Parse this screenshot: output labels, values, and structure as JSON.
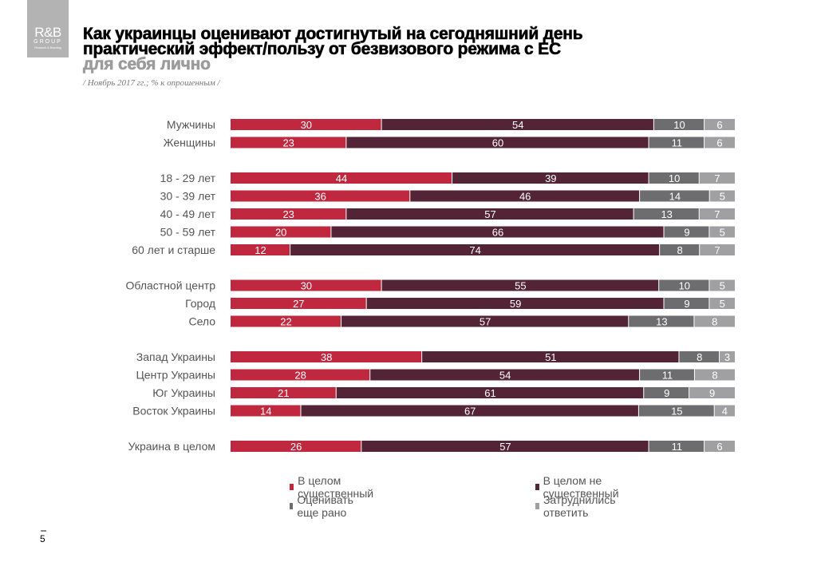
{
  "logo": {
    "line1": "R&B",
    "line2": "GROUP",
    "line3": "Research & Branding"
  },
  "title": {
    "line1": "Как украинцы оценивают достигнутый на сегодняшний день",
    "line2": "практический эффект/пользу от безвизового режима с ЕС",
    "line3": "для себя лично"
  },
  "note": "/ Ноябрь 2017 гг.; % к опрошенным /",
  "page_number": "5",
  "colors": {
    "significant": "#c0283f",
    "not_significant": "#532435",
    "too_early": "#6d6d6f",
    "hard_to_say": "#a0a0a2"
  },
  "chart_data": {
    "type": "bar",
    "orientation": "horizontal",
    "stacked": true,
    "title": "Как украинцы оценивают достигнутый на сегодняшний день практический эффект/пользу от безвизового режима с ЕС для себя лично",
    "subtitle": "/ Ноябрь 2017 гг.; % к опрошенным /",
    "xlabel": "",
    "ylabel": "",
    "xlim": [
      0,
      100
    ],
    "grid": false,
    "legend_position": "bottom",
    "groups": [
      {
        "categories": [
          "Мужчины",
          "Женщины"
        ]
      },
      {
        "categories": [
          "18 - 29 лет",
          "30 - 39 лет",
          "40 - 49 лет",
          "50 - 59 лет",
          "60 лет и старше"
        ]
      },
      {
        "categories": [
          "Областной центр",
          "Город",
          "Село"
        ]
      },
      {
        "categories": [
          "Запад Украины",
          "Центр Украины",
          "Юг Украины",
          "Восток Украины"
        ]
      },
      {
        "categories": [
          "Украина в целом"
        ]
      }
    ],
    "categories": [
      "Мужчины",
      "Женщины",
      "18 - 29 лет",
      "30 - 39 лет",
      "40 - 49 лет",
      "50 - 59 лет",
      "60 лет и старше",
      "Областной центр",
      "Город",
      "Село",
      "Запад Украины",
      "Центр Украины",
      "Юг Украины",
      "Восток Украины",
      "Украина в целом"
    ],
    "series": [
      {
        "name": "В целом существенный",
        "color": "#c0283f",
        "values": [
          30,
          23,
          44,
          36,
          23,
          20,
          12,
          30,
          27,
          22,
          38,
          28,
          21,
          14,
          26
        ]
      },
      {
        "name": "В целом не существенный",
        "color": "#532435",
        "values": [
          54,
          60,
          39,
          46,
          57,
          66,
          74,
          55,
          59,
          57,
          51,
          54,
          61,
          67,
          57
        ]
      },
      {
        "name": "Оценивать еще рано",
        "color": "#6d6d6f",
        "values": [
          10,
          11,
          10,
          14,
          13,
          9,
          8,
          10,
          9,
          13,
          8,
          11,
          9,
          15,
          11
        ]
      },
      {
        "name": "Затруднились ответить",
        "color": "#a0a0a2",
        "values": [
          6,
          6,
          7,
          5,
          7,
          5,
          7,
          5,
          5,
          8,
          3,
          8,
          9,
          4,
          6
        ]
      }
    ]
  }
}
